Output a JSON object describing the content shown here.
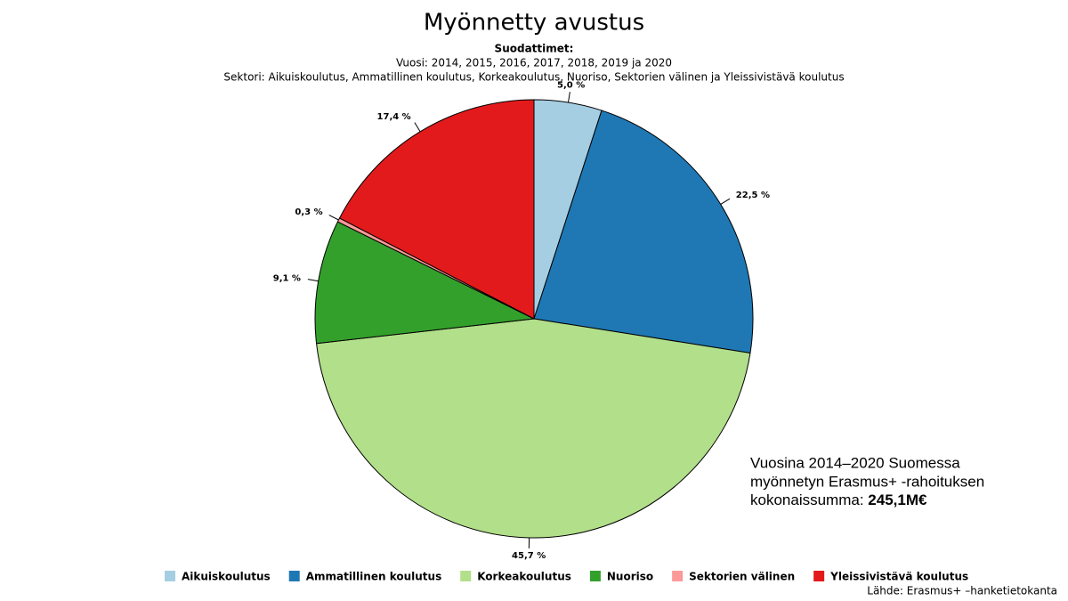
{
  "chart_data": {
    "type": "pie",
    "title": "Myönnetty avustus",
    "subtitle": [
      "Suodattimet:",
      "Vuosi: 2014, 2015, 2016, 2017, 2018, 2019 ja 2020",
      "Sektori: Aikuiskoulutus, Ammatillinen koulutus, Korkeakoulutus, Nuoriso, Sektorien välinen ja Yleissivistävä koulutus"
    ],
    "categories": [
      "Aikuiskoulutus",
      "Ammatillinen koulutus",
      "Korkeakoulutus",
      "Nuoriso",
      "Sektorien välinen",
      "Yleissivistävä koulutus"
    ],
    "values": [
      5.0,
      22.5,
      45.7,
      9.1,
      0.3,
      17.4
    ],
    "value_labels": [
      "5,0 %",
      "22,5 %",
      "45,7 %",
      "9,1 %",
      "0,3 %",
      "17,4 %"
    ],
    "colors": [
      "#a6cee3",
      "#1f78b4",
      "#b2df8a",
      "#33a02c",
      "#fb9a99",
      "#e31a1c"
    ],
    "annotation": {
      "lines": [
        "Vuosina 2014–2020 Suomessa",
        "myönnetyn Erasmus+ -rahoituksen",
        "kokonaissumma:"
      ],
      "total": "245,1M€"
    },
    "source": "Lähde: Erasmus+ –hanketietokanta"
  }
}
